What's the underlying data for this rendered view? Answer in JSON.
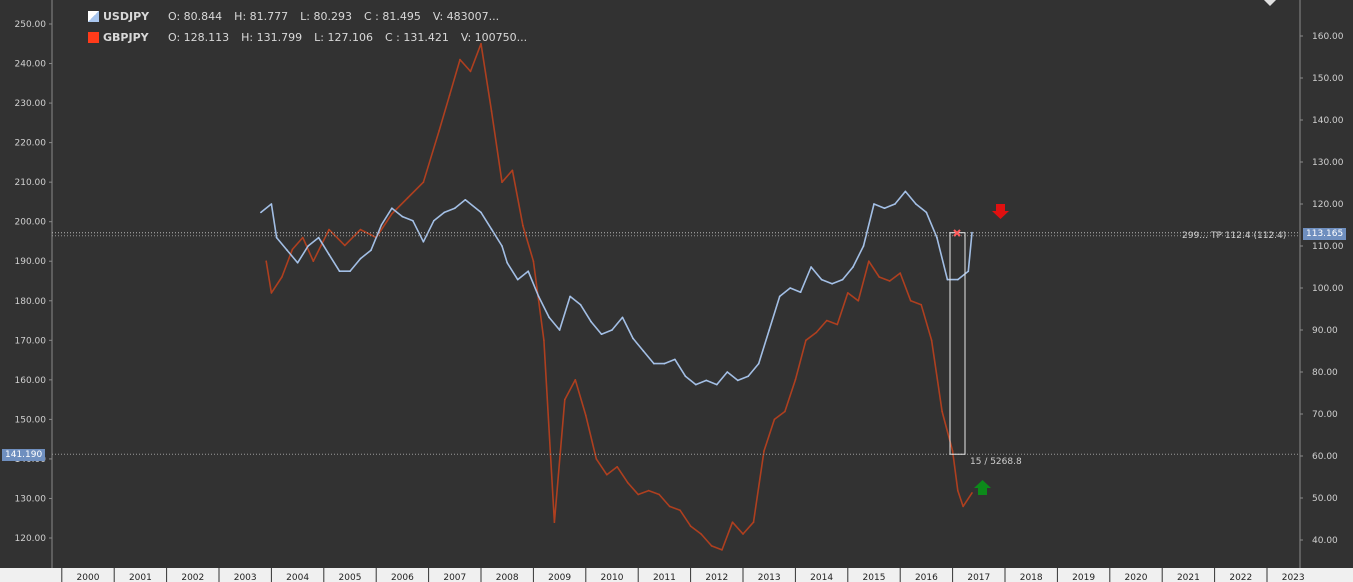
{
  "legend": [
    {
      "symbol": "USDJPY",
      "color": "#a9c6ee",
      "o": "O: 80.844",
      "h": "H: 81.777",
      "l": "L: 80.293",
      "c": "C : 81.495",
      "v": "V: 483007..."
    },
    {
      "symbol": "GBPJPY",
      "color": "#ff3b1a",
      "o": "O: 128.113",
      "h": "H: 131.799",
      "l": "L: 127.106",
      "c": "C : 131.421",
      "v": "V: 100750..."
    }
  ],
  "tags": {
    "left_price": "141.190",
    "right_price": "113.165",
    "tp_label": "299… TP 112.4 (112.4)",
    "range_label": "15 / 5268.8"
  },
  "colors": {
    "background": "#323232",
    "usdjpy": "#a9c6ee",
    "gbpjpy": "#b5401f",
    "sell_arrow": "#e01010",
    "buy_arrow": "#0c8a1a"
  },
  "chart_data": {
    "type": "line",
    "x_axis_labels": [
      "2000",
      "2001",
      "2002",
      "2003",
      "2004",
      "2005",
      "2006",
      "2007",
      "2008",
      "2009",
      "2010",
      "2011",
      "2012",
      "2013",
      "2014",
      "2015",
      "2016",
      "2017",
      "2018",
      "2019",
      "2020",
      "2021",
      "2022",
      "2023"
    ],
    "left_axis": {
      "ticks": [
        "120.00",
        "130.00",
        "140.00",
        "150.00",
        "160.00",
        "170.00",
        "180.00",
        "190.00",
        "200.00",
        "210.00",
        "220.00",
        "230.00",
        "240.00",
        "250.00"
      ],
      "ylim": [
        114,
        254
      ]
    },
    "right_axis": {
      "ticks": [
        "40.00",
        "50.00",
        "60.00",
        "70.00",
        "80.00",
        "90.00",
        "100.00",
        "110.00",
        "120.00",
        "130.00",
        "140.00",
        "150.00",
        "160.00"
      ],
      "ylim": [
        34,
        168
      ]
    },
    "series": [
      {
        "name": "USDJPY",
        "axis": "right",
        "x": [
          2003.3,
          2003.5,
          2003.6,
          2003.8,
          2004.0,
          2004.2,
          2004.4,
          2004.6,
          2004.8,
          2005.0,
          2005.2,
          2005.4,
          2005.6,
          2005.8,
          2006.0,
          2006.2,
          2006.4,
          2006.6,
          2006.8,
          2007.0,
          2007.2,
          2007.5,
          2007.7,
          2007.9,
          2008.0,
          2008.2,
          2008.4,
          2008.6,
          2008.8,
          2009.0,
          2009.2,
          2009.4,
          2009.6,
          2009.8,
          2010.0,
          2010.2,
          2010.4,
          2010.6,
          2010.8,
          2011.0,
          2011.2,
          2011.4,
          2011.6,
          2011.8,
          2012.0,
          2012.2,
          2012.4,
          2012.6,
          2012.8,
          2013.0,
          2013.2,
          2013.4,
          2013.6,
          2013.8,
          2014.0,
          2014.2,
          2014.4,
          2014.6,
          2014.8,
          2015.0,
          2015.2,
          2015.4,
          2015.6,
          2015.8,
          2016.0,
          2016.2,
          2016.4,
          2016.6,
          2016.8,
          2016.87
        ],
        "y": [
          118,
          120,
          112,
          109,
          106,
          110,
          112,
          108,
          104,
          104,
          107,
          109,
          115,
          119,
          117,
          116,
          111,
          116,
          118,
          119,
          121,
          118,
          114,
          110,
          106,
          102,
          104,
          98,
          93,
          90,
          98,
          96,
          92,
          89,
          90,
          93,
          88,
          85,
          82,
          82,
          83,
          79,
          77,
          78,
          77,
          80,
          78,
          79,
          82,
          90,
          98,
          100,
          99,
          105,
          102,
          101,
          102,
          105,
          110,
          120,
          119,
          120,
          123,
          120,
          118,
          112,
          102,
          102,
          104,
          113.2
        ]
      },
      {
        "name": "GBPJPY",
        "axis": "left",
        "x": [
          2003.4,
          2003.5,
          2003.7,
          2003.9,
          2004.1,
          2004.3,
          2004.6,
          2004.9,
          2005.2,
          2005.5,
          2005.8,
          2006.1,
          2006.4,
          2006.7,
          2006.9,
          2007.1,
          2007.3,
          2007.5,
          2007.7,
          2007.9,
          2008.1,
          2008.3,
          2008.5,
          2008.7,
          2008.9,
          2009.1,
          2009.3,
          2009.5,
          2009.7,
          2009.9,
          2010.1,
          2010.3,
          2010.5,
          2010.7,
          2010.9,
          2011.1,
          2011.3,
          2011.5,
          2011.7,
          2011.9,
          2012.1,
          2012.3,
          2012.5,
          2012.7,
          2012.9,
          2013.1,
          2013.3,
          2013.5,
          2013.7,
          2013.9,
          2014.1,
          2014.3,
          2014.5,
          2014.7,
          2014.9,
          2015.1,
          2015.3,
          2015.5,
          2015.7,
          2015.9,
          2016.1,
          2016.3,
          2016.5,
          2016.6,
          2016.7,
          2016.87
        ],
        "y": [
          190,
          182,
          186,
          193,
          196,
          190,
          198,
          194,
          198,
          196,
          202,
          206,
          210,
          223,
          232,
          241,
          238,
          245,
          228,
          210,
          213,
          199,
          190,
          170,
          124,
          155,
          160,
          151,
          140,
          136,
          138,
          134,
          131,
          132,
          131,
          128,
          127,
          123,
          121,
          118,
          117,
          124,
          121,
          124,
          142,
          150,
          152,
          160,
          170,
          172,
          175,
          174,
          182,
          180,
          190,
          186,
          185,
          187,
          180,
          179,
          170,
          152,
          142,
          132,
          128,
          131.4
        ]
      }
    ]
  }
}
